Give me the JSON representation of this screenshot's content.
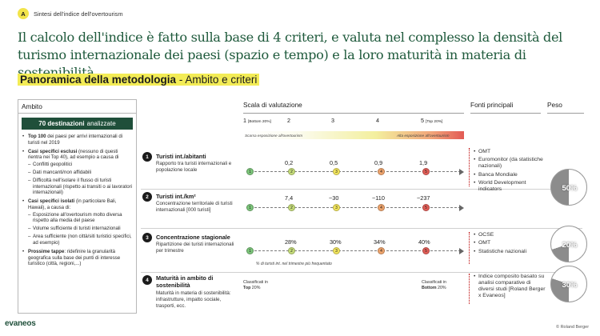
{
  "tag": {
    "letter": "A",
    "text": "Sintesi dell'indice dell'overtourism"
  },
  "headline": "Il calcolo dell'indice è fatto sulla base di 4 criteri, e valuta nel complesso la densità del turismo internazionale dei paesi (spazio e tempo) e la loro maturità in materia di sostenibilità.",
  "section": {
    "title_bold": "Panoramica della metodologia",
    "title_rest": " - Ambito e criteri"
  },
  "ambito": {
    "title": "Ambito",
    "banner_bold": "70 destinazioni",
    "banner_rest": "analizzate",
    "items": [
      {
        "bold": "Top 100",
        "text": " dei paesi per arrivi internazionali di turisti nel 2019",
        "subs": []
      },
      {
        "bold": "Casi specifici esclusi",
        "text": " (nessuno di questi rientra nei Top 40), ad esempio a causa di",
        "subs": [
          "Conflitti geopolitici",
          "Dati mancanti/non affidabili",
          "Difficoltà nell'isolare il flusso di turisti internazionali (rispetto ai transiti o ai lavoratori internazionali)"
        ]
      },
      {
        "bold": "Casi specifici isolati",
        "text": " (in particolare Bali, Hawaii), a causa di:",
        "subs": [
          "Esposizione all'overtourism molto diversa rispetto alla media del paese",
          "Volume sufficiente di turisti internazionali",
          "Area sufficiente (non città/siti turistici specifici, ad esempio)"
        ]
      },
      {
        "bold": "Prossime tappe",
        "text": ": ridefinire la granularità geografica sulla base dei punti di interesse turistico (città, regioni,...)",
        "subs": []
      }
    ]
  },
  "columns": {
    "scale": "Scala di valutazione",
    "sources": "Fonti principali",
    "weight": "Peso"
  },
  "scale": {
    "labels": [
      "1",
      "2",
      "3",
      "4",
      "5"
    ],
    "label1_note": "[Bottom 20%]",
    "label5_note": "[Top 20%]",
    "low_exposure": "Scarsa esposizione all'overtourism",
    "high_exposure": "Alta esposizione all'overtourism"
  },
  "criteria": [
    {
      "num": "1",
      "title": "Turisti int./abitanti",
      "desc": "Rapporto tra turisti internazionali e popolazione locale",
      "thresholds": [
        "0,2",
        "0,5",
        "0,9",
        "1,9"
      ]
    },
    {
      "num": "2",
      "title": "Turisti int./km²",
      "desc": "Concentrazione territoriale di turisti internazionali [000 turisti]",
      "thresholds": [
        "7,4",
        "~30",
        "~110",
        "~237"
      ]
    },
    {
      "num": "3",
      "title": "Concentrazione stagionale",
      "desc": "Ripartizione dei turisti internazionali per trimestre",
      "thresholds": [
        "28%",
        "30%",
        "34%",
        "40%"
      ]
    },
    {
      "num": "4",
      "title": "Maturità in ambito di sostenibilità",
      "desc": "Maturità in materia di sostenibilità: infrastrutture, impatto sociale, trasporti, ecc."
    }
  ],
  "dot_values": [
    "1",
    "2",
    "3",
    "4",
    "5"
  ],
  "quarter_note": "% di turisti int. nel trimestre più frequentato",
  "classif_left": {
    "line1": "Classificati in",
    "bold": "Top",
    "rest": " 20%"
  },
  "classif_right": {
    "line1": "Classificati in",
    "bold": "Bottom",
    "rest": " 20%"
  },
  "sources_a": [
    "OMT",
    "Euromonitor (da statistiche nazionali)",
    "Banca Mondiale",
    "World Development indicators"
  ],
  "sources_b": [
    "OCSE",
    "OMT",
    "Statistiche nazionali"
  ],
  "sources_c": [
    "Indice composito basato su analisi comparative di diversi studi [Roland Berger x Evaneos]"
  ],
  "weights": [
    {
      "label": "50%",
      "fraction": 0.5
    },
    {
      "label": "20%",
      "fraction": 0.2
    },
    {
      "label": "30%",
      "fraction": 0.3
    }
  ],
  "colors": {
    "brand": "#1f5a3c",
    "highlight": "#f3ec56",
    "pie": "#8c8c8c"
  },
  "footer": {
    "logo": "evaneos",
    "copyright": "© Roland Berger"
  }
}
